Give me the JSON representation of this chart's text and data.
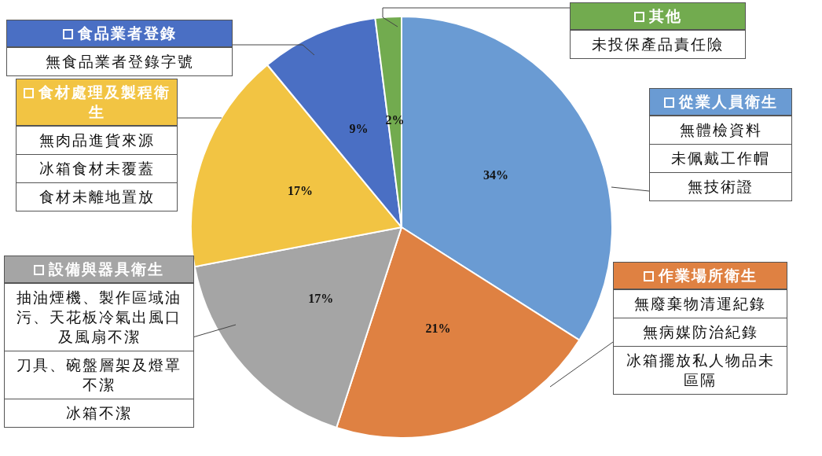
{
  "chart_data": {
    "type": "pie",
    "categories": [
      "從業人員衛生",
      "作業場所衛生",
      "設備與器具衛生",
      "食材處理及製程衛生",
      "食品業者登錄",
      "其他"
    ],
    "values": [
      34,
      21,
      17,
      17,
      9,
      2
    ],
    "value_labels": [
      "34%",
      "21%",
      "17%",
      "17%",
      "9%",
      "2%"
    ],
    "colors": [
      "#6a9bd3",
      "#df8142",
      "#a5a5a5",
      "#f2c443",
      "#4a6fc4",
      "#72ab4f"
    ],
    "legend": "top",
    "annotations": [
      {
        "text": "無體檢資料",
        "x": "從業人員衛生"
      },
      {
        "text": "未佩戴工作帽",
        "x": "從業人員衛生"
      },
      {
        "text": "無技術證",
        "x": "從業人員衛生"
      },
      {
        "text": "無廢棄物清運紀錄",
        "x": "作業場所衛生"
      },
      {
        "text": "無病媒防治紀錄",
        "x": "作業場所衛生"
      },
      {
        "text": "冰箱擺放私人物品未區隔",
        "x": "作業場所衛生"
      },
      {
        "text": "抽油煙機、製作區域油污、天花板冷氣出風口及風扇不潔",
        "x": "設備與器具衛生"
      },
      {
        "text": "刀具、碗盤層架及燈罩不潔",
        "x": "設備與器具衛生"
      },
      {
        "text": "冰箱不潔",
        "x": "設備與器具衛生"
      },
      {
        "text": "無肉品進貨來源",
        "x": "食材處理及製程衛生"
      },
      {
        "text": "冰箱食材未覆蓋",
        "x": "食材處理及製程衛生"
      },
      {
        "text": "食材未離地置放",
        "x": "食材處理及製程衛生"
      },
      {
        "text": "無食品業者登錄字號",
        "x": "食品業者登錄"
      },
      {
        "text": "未投保產品責任險",
        "x": "其他"
      }
    ]
  }
}
